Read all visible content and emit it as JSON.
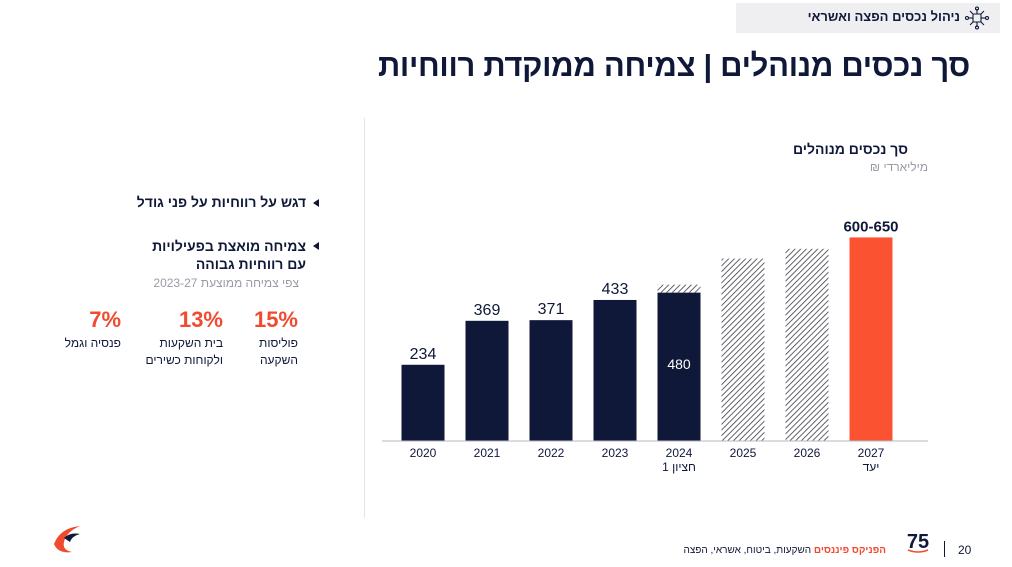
{
  "header": {
    "title": "ניהול נכסים הפצה ואשראי",
    "icon": "network-icon"
  },
  "page_title": "סך נכסים מנוהלים | צמיחה ממוקדת רווחיות",
  "bullets": [
    {
      "text": "דגש על רווחיות על פני גודל"
    },
    {
      "line1": "צמיחה מואצת בפעילויות",
      "line2": "עם רווחיות גבוהה"
    }
  ],
  "growth_subtitle": "צפי צמיחה ממוצעת 2023-27",
  "stats": [
    {
      "value": "15%",
      "line1": "פוליסות",
      "line2": "השקעה"
    },
    {
      "value": "13%",
      "line1": "בית השקעות",
      "line2": "ולקוחות כשירים"
    },
    {
      "value": "7%",
      "line1": "פנסיה וגמל",
      "line2": ""
    }
  ],
  "chart_data": {
    "type": "bar",
    "title": "סך נכסים מנוהלים",
    "ylabel": "מיליארדי ₪",
    "categories": [
      "2020",
      "2021",
      "2022",
      "2023",
      "2024",
      "2025",
      "2026",
      "2027"
    ],
    "category_sublabels": [
      "",
      "",
      "",
      "",
      "חציון 1",
      "",
      "",
      "יעד"
    ],
    "values": [
      234,
      369,
      371,
      433,
      480,
      560,
      590,
      625
    ],
    "value_labels": [
      "234",
      "369",
      "371",
      "433",
      "480",
      "",
      "",
      "600-650"
    ],
    "bar_styles": [
      "solid",
      "solid",
      "solid",
      "solid",
      "solid-hatched-top",
      "hatched",
      "hatched",
      "target"
    ],
    "colors": {
      "solid": "#0f1838",
      "target": "#fb5232",
      "hatch": "#3a3a44"
    },
    "ylim": [
      0,
      700
    ],
    "grid": false,
    "legend": "none"
  },
  "footer": {
    "page_number": "20",
    "brand": "הפניקס פיננסים",
    "tagline": " השקעות, ביטוח, אשראי, הפצה",
    "badge": "75"
  },
  "logo": "phoenix-logo"
}
